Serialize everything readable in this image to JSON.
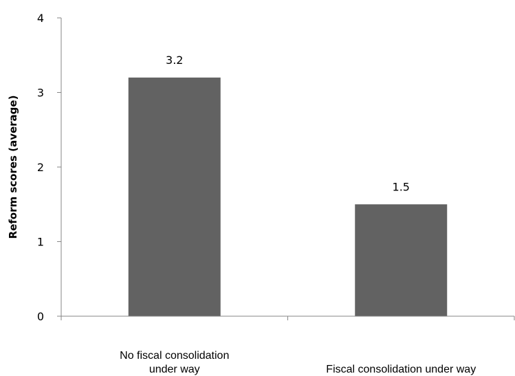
{
  "chart_data": {
    "type": "bar",
    "title": "",
    "xlabel": "",
    "ylabel": "Reform scores (average)",
    "categories": [
      [
        "No fiscal consolidation",
        "under way"
      ],
      [
        "Fiscal consolidation under way"
      ]
    ],
    "values": [
      3.2,
      1.5
    ],
    "data_labels": [
      "3.2",
      "1.5"
    ],
    "ylim": [
      0,
      4
    ],
    "yticks": [
      0,
      1,
      2,
      3,
      4
    ],
    "grid": false,
    "legend": "none",
    "colors": {
      "bar": "#626262",
      "axis": "#868686"
    }
  }
}
